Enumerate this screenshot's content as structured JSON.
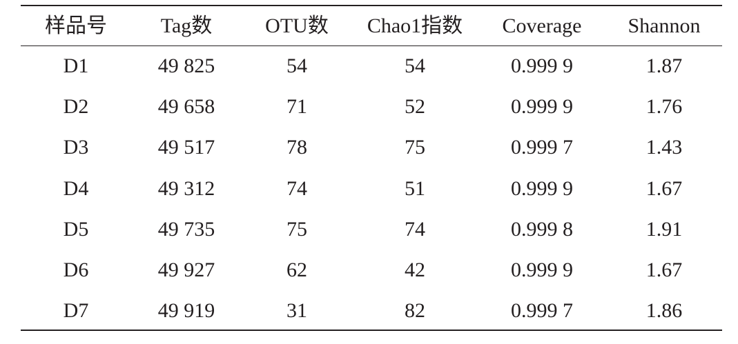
{
  "table": {
    "header": [
      "样品号",
      "Tag数",
      "OTU数",
      "Chao1指数",
      "Coverage",
      "Shannon"
    ],
    "rows": [
      [
        "D1",
        "49 825",
        "54",
        "54",
        "0.999 9",
        "1.87"
      ],
      [
        "D2",
        "49 658",
        "71",
        "52",
        "0.999 9",
        "1.76"
      ],
      [
        "D3",
        "49 517",
        "78",
        "75",
        "0.999 7",
        "1.43"
      ],
      [
        "D4",
        "49 312",
        "74",
        "51",
        "0.999 9",
        "1.67"
      ],
      [
        "D5",
        "49 735",
        "75",
        "74",
        "0.999 8",
        "1.91"
      ],
      [
        "D6",
        "49 927",
        "62",
        "42",
        "0.999 9",
        "1.67"
      ],
      [
        "D7",
        "49 919",
        "31",
        "82",
        "0.999 7",
        "1.86"
      ]
    ]
  }
}
